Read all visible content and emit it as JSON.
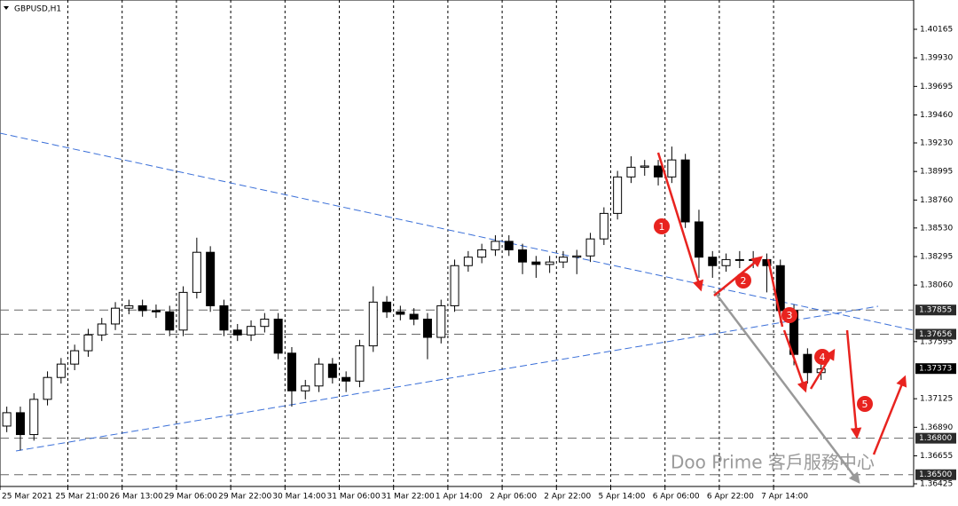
{
  "header": "GBPUSD,H1",
  "watermark": "Doo Prime 客戶服務中心",
  "chart_data": {
    "type": "candlestick",
    "categories": [
      "25 Mar 2021",
      null,
      null,
      null,
      null,
      "25 Mar 21:00",
      null,
      null,
      null,
      "26 Mar 13:00",
      null,
      null,
      null,
      "29 Mar 06:00",
      null,
      null,
      null,
      "29 Mar 22:00",
      null,
      null,
      null,
      "30 Mar 14:00",
      null,
      null,
      null,
      "31 Mar 06:00",
      null,
      null,
      null,
      "31 Mar 22:00",
      null,
      null,
      null,
      "1 Apr 14:00",
      null,
      null,
      null,
      "2 Apr 06:00",
      null,
      null,
      null,
      "2 Apr 22:00",
      null,
      null,
      null,
      "5 Apr 14:00",
      null,
      null,
      null,
      "6 Apr 06:00",
      null,
      null,
      null,
      "6 Apr 22:00",
      null,
      null,
      null,
      "7 Apr 14:00",
      null,
      null,
      null
    ],
    "open": [
      1.369,
      1.3701,
      1.3683,
      1.3712,
      1.373,
      1.3741,
      1.3752,
      1.3765,
      1.3774,
      1.3787,
      1.3789,
      1.3785,
      1.3784,
      1.3769,
      1.38,
      1.3833,
      1.3789,
      1.3769,
      1.3765,
      1.3772,
      1.3778,
      1.375,
      1.3719,
      1.3723,
      1.3741,
      1.373,
      1.3727,
      1.3756,
      1.3792,
      1.3784,
      1.3782,
      1.3778,
      1.3763,
      1.3789,
      1.3822,
      1.3829,
      1.3835,
      1.3842,
      1.3835,
      1.3825,
      1.3823,
      1.3825,
      1.3829,
      1.383,
      1.3844,
      1.3865,
      1.3895,
      1.3903,
      1.3904,
      1.3895,
      1.3909,
      1.3858,
      1.3829,
      1.3822,
      1.3827,
      1.3827,
      1.3827,
      1.3822,
      1.3785,
      1.3749,
      1.3734
    ],
    "high": [
      1.3706,
      1.3706,
      1.3717,
      1.3735,
      1.3746,
      1.3757,
      1.377,
      1.3779,
      1.3792,
      1.3794,
      1.3794,
      1.379,
      1.3789,
      1.3805,
      1.3845,
      1.3838,
      1.3794,
      1.3774,
      1.3777,
      1.3783,
      1.3783,
      1.3755,
      1.3728,
      1.3746,
      1.3746,
      1.3735,
      1.3761,
      1.3805,
      1.3797,
      1.3789,
      1.3787,
      1.3783,
      1.3794,
      1.3827,
      1.3834,
      1.384,
      1.3847,
      1.3847,
      1.384,
      1.383,
      1.383,
      1.3834,
      1.3835,
      1.3849,
      1.387,
      1.39,
      1.3912,
      1.3909,
      1.3909,
      1.392,
      1.3914,
      1.3868,
      1.3834,
      1.3832,
      1.3834,
      1.3834,
      1.3832,
      1.3827,
      1.379,
      1.3754,
      1.3742
    ],
    "low": [
      1.3685,
      1.367,
      1.3678,
      1.3707,
      1.3725,
      1.3736,
      1.3747,
      1.376,
      1.3769,
      1.3782,
      1.378,
      1.3779,
      1.3764,
      1.3764,
      1.3795,
      1.3784,
      1.3764,
      1.376,
      1.376,
      1.3767,
      1.3745,
      1.3706,
      1.3712,
      1.3718,
      1.3725,
      1.3718,
      1.3722,
      1.3751,
      1.3779,
      1.3777,
      1.3773,
      1.3745,
      1.3758,
      1.3784,
      1.3817,
      1.3824,
      1.383,
      1.383,
      1.3815,
      1.3812,
      1.3816,
      1.382,
      1.3815,
      1.3825,
      1.3839,
      1.386,
      1.389,
      1.3896,
      1.3888,
      1.389,
      1.3853,
      1.3812,
      1.3812,
      1.3817,
      1.382,
      1.382,
      1.38,
      1.3775,
      1.374,
      1.3725,
      1.3728
    ],
    "close": [
      1.3701,
      1.3683,
      1.3712,
      1.373,
      1.3741,
      1.3752,
      1.3765,
      1.3774,
      1.3787,
      1.3789,
      1.3785,
      1.3784,
      1.3769,
      1.38,
      1.3833,
      1.3789,
      1.3769,
      1.3765,
      1.3772,
      1.3778,
      1.375,
      1.3719,
      1.3723,
      1.3741,
      1.373,
      1.3727,
      1.3756,
      1.3792,
      1.3784,
      1.3782,
      1.3778,
      1.3763,
      1.3789,
      1.3822,
      1.3829,
      1.3835,
      1.3842,
      1.3835,
      1.3825,
      1.3823,
      1.3825,
      1.3829,
      1.383,
      1.3844,
      1.3865,
      1.3895,
      1.3903,
      1.3904,
      1.3895,
      1.3909,
      1.3858,
      1.3829,
      1.3822,
      1.3827,
      1.3827,
      1.3827,
      1.3822,
      1.3785,
      1.3749,
      1.3734,
      1.3737
    ],
    "up_color": "#ffffff",
    "down_color": "#000000",
    "ylim": [
      1.36403,
      1.40406
    ],
    "yticks": [
      1.40165,
      {
        "value": 1.3993,
        "label": "1.39930"
      },
      1.39695,
      {
        "value": 1.3946,
        "label": "1.39460"
      },
      {
        "value": 1.3923,
        "label": "1.39230"
      },
      1.38995,
      {
        "value": 1.3876,
        "label": "1.38760"
      },
      {
        "value": 1.3853,
        "label": "1.38530"
      },
      1.38295,
      {
        "value": 1.3806,
        "label": "1.38060"
      },
      1.37595,
      1.37125,
      {
        "value": 1.3689,
        "label": "1.36890"
      },
      1.36655,
      1.36425
    ],
    "levels": [
      1.37855,
      1.37656,
      {
        "value": 1.368,
        "label": "1.36800"
      },
      {
        "value": 1.365,
        "label": "1.36500"
      }
    ],
    "last_price": 1.37373,
    "annotations": [
      "1",
      "2",
      "3",
      "4",
      "5"
    ]
  }
}
